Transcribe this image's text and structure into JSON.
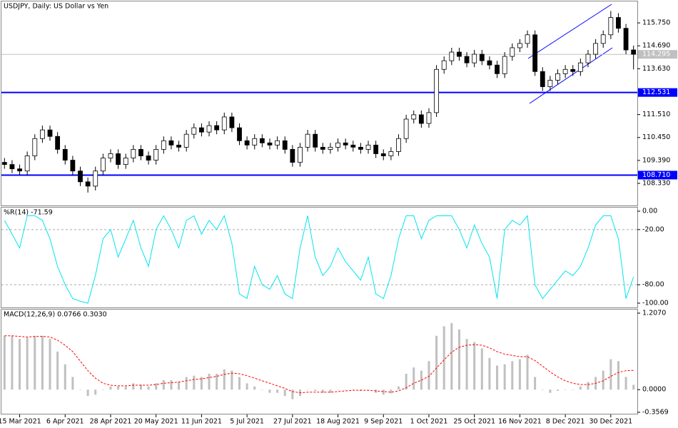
{
  "chart_data": [
    {
      "type": "candlestick",
      "title": "USDJPY, Daily:  US Dollar vs Yen",
      "categories": [
        null,
        null,
        "15 Mar 2021",
        null,
        null,
        null,
        null,
        null,
        "6 Apr 2021",
        null,
        null,
        null,
        null,
        null,
        "28 Apr 2021",
        null,
        null,
        null,
        null,
        null,
        "20 May 2021",
        null,
        null,
        null,
        null,
        null,
        "11 Jun 2021",
        null,
        null,
        null,
        null,
        null,
        "5 Jul 2021",
        null,
        null,
        null,
        null,
        null,
        "27 Jul 2021",
        null,
        null,
        null,
        null,
        null,
        "18 Aug 2021",
        null,
        null,
        null,
        null,
        null,
        "9 Sep 2021",
        null,
        null,
        null,
        null,
        null,
        "1 Oct 2021",
        null,
        null,
        null,
        null,
        null,
        "25 Oct 2021",
        null,
        null,
        null,
        null,
        null,
        "16 Nov 2021",
        null,
        null,
        null,
        null,
        null,
        "8 Dec 2021",
        null,
        null,
        null,
        null,
        null,
        "30 Dec 2021",
        null,
        null,
        null
      ],
      "open": [
        109.3,
        109.2,
        109.0,
        108.9,
        109.6,
        110.4,
        110.8,
        110.5,
        109.9,
        109.4,
        108.9,
        108.4,
        108.2,
        108.9,
        109.5,
        109.7,
        109.2,
        109.5,
        109.9,
        109.6,
        109.4,
        109.9,
        110.3,
        110.1,
        110.0,
        110.6,
        110.9,
        110.7,
        111.0,
        110.8,
        111.4,
        110.9,
        110.3,
        110.1,
        110.4,
        110.2,
        110.1,
        110.3,
        109.9,
        109.3,
        110.0,
        110.6,
        110.0,
        109.9,
        110.0,
        110.2,
        110.1,
        110.0,
        109.9,
        110.1,
        109.7,
        109.6,
        109.8,
        110.4,
        111.3,
        111.5,
        111.1,
        111.6,
        113.6,
        114.0,
        114.4,
        114.2,
        113.9,
        114.3,
        114.0,
        113.8,
        113.4,
        114.2,
        114.6,
        114.8,
        115.2,
        113.5,
        112.8,
        113.1,
        113.4,
        113.6,
        113.5,
        113.9,
        114.3,
        114.8,
        115.2,
        116.0,
        115.5,
        114.5
      ],
      "high": [
        109.5,
        109.4,
        109.2,
        109.8,
        110.6,
        111.0,
        111.0,
        110.7,
        110.1,
        109.6,
        109.1,
        108.6,
        109.1,
        109.7,
        109.9,
        109.9,
        109.7,
        110.1,
        110.1,
        109.8,
        110.1,
        110.5,
        110.5,
        110.3,
        110.8,
        111.1,
        111.1,
        111.2,
        111.2,
        111.6,
        111.6,
        111.1,
        110.5,
        110.6,
        110.6,
        110.4,
        110.5,
        110.5,
        110.1,
        110.2,
        110.8,
        110.8,
        110.2,
        110.2,
        110.4,
        110.4,
        110.3,
        110.2,
        110.3,
        110.3,
        109.9,
        110.0,
        110.6,
        111.5,
        111.7,
        111.7,
        111.8,
        113.8,
        114.2,
        114.6,
        114.6,
        114.4,
        114.5,
        114.5,
        114.2,
        114.0,
        114.4,
        114.8,
        115.0,
        115.4,
        115.4,
        113.7,
        113.3,
        113.6,
        113.8,
        113.8,
        114.1,
        114.5,
        115.0,
        115.4,
        116.3,
        116.2,
        115.7,
        114.7
      ],
      "low": [
        109.0,
        108.8,
        108.7,
        108.7,
        109.4,
        110.2,
        110.3,
        109.7,
        109.2,
        108.7,
        108.2,
        107.9,
        108.0,
        108.7,
        109.3,
        109.0,
        109.0,
        109.3,
        109.4,
        109.2,
        109.2,
        109.7,
        109.9,
        109.8,
        109.8,
        110.4,
        110.5,
        110.5,
        110.6,
        110.6,
        110.7,
        110.1,
        109.9,
        109.9,
        110.0,
        109.9,
        109.9,
        109.7,
        109.1,
        109.1,
        109.8,
        109.8,
        109.7,
        109.7,
        109.8,
        109.9,
        109.8,
        109.7,
        109.7,
        109.5,
        109.4,
        109.4,
        109.6,
        110.2,
        111.1,
        110.9,
        110.9,
        111.4,
        113.4,
        113.8,
        114.0,
        113.7,
        113.7,
        113.8,
        113.6,
        113.2,
        113.2,
        114.0,
        114.4,
        114.6,
        113.3,
        112.6,
        112.6,
        112.9,
        113.2,
        113.3,
        113.3,
        113.7,
        114.1,
        114.6,
        115.0,
        115.3,
        114.3,
        113.6
      ],
      "close": [
        109.2,
        109.0,
        108.9,
        109.6,
        110.4,
        110.8,
        110.5,
        109.9,
        109.4,
        108.9,
        108.4,
        108.2,
        108.9,
        109.5,
        109.7,
        109.2,
        109.5,
        109.9,
        109.6,
        109.4,
        109.9,
        110.3,
        110.1,
        110.0,
        110.6,
        110.9,
        110.7,
        111.0,
        110.8,
        111.4,
        110.9,
        110.3,
        110.1,
        110.4,
        110.2,
        110.1,
        110.3,
        109.9,
        109.3,
        110.0,
        110.6,
        110.0,
        109.9,
        110.0,
        110.2,
        110.1,
        110.0,
        109.9,
        110.1,
        109.7,
        109.6,
        109.8,
        110.4,
        111.3,
        111.5,
        111.1,
        111.6,
        113.6,
        114.0,
        114.4,
        114.2,
        113.9,
        114.3,
        114.0,
        113.8,
        113.4,
        114.2,
        114.6,
        114.8,
        115.2,
        113.5,
        112.8,
        113.1,
        113.4,
        113.6,
        113.5,
        113.9,
        114.3,
        114.8,
        115.2,
        116.0,
        115.5,
        114.5,
        114.3
      ],
      "up_color": "#ffffff",
      "down_color": "#000000",
      "ylim": [
        107.34,
        116.71
      ],
      "yticks": [
        {
          "value": 115.75,
          "label": "115.750"
        },
        {
          "value": 114.69,
          "label": "114.690"
        },
        {
          "value": 113.63,
          "label": "113.630"
        },
        {
          "value": 111.51,
          "label": "111.510"
        },
        {
          "value": 110.45,
          "label": "110.450"
        },
        {
          "value": 109.39,
          "label": "109.390"
        },
        {
          "value": 108.33,
          "label": "108.330"
        }
      ],
      "levels": [
        {
          "value": 112.531,
          "label": "112.531",
          "color": "#0000ff"
        },
        {
          "value": 108.71,
          "label": "108.710",
          "color": "#0000ff"
        }
      ],
      "current": {
        "value": 114.295,
        "label": "114.295",
        "color": "#c0c0c0"
      }
    },
    {
      "type": "line",
      "title": "%R(14) -71.59",
      "series": [
        {
          "color": "#00e5ee",
          "values": [
            -10,
            -25,
            -40,
            -5,
            -5,
            -10,
            -30,
            -60,
            -80,
            -95,
            -98,
            -100,
            -70,
            -30,
            -20,
            -50,
            -30,
            -10,
            -40,
            -60,
            -20,
            -5,
            -20,
            -40,
            -10,
            -5,
            -25,
            -10,
            -20,
            -5,
            -35,
            -90,
            -95,
            -60,
            -80,
            -85,
            -70,
            -90,
            -95,
            -40,
            -5,
            -50,
            -70,
            -60,
            -40,
            -55,
            -65,
            -75,
            -50,
            -90,
            -95,
            -70,
            -30,
            -5,
            -5,
            -30,
            -10,
            -5,
            -5,
            -5,
            -20,
            -40,
            -15,
            -35,
            -50,
            -95,
            -20,
            -10,
            -15,
            -5,
            -80,
            -95,
            -85,
            -75,
            -65,
            -70,
            -60,
            -40,
            -15,
            -5,
            -5,
            -30,
            -95,
            -71.59
          ]
        }
      ],
      "ylim": [
        -103.9,
        3.9
      ],
      "yticks": [
        {
          "value": 0,
          "label": "0.00"
        },
        {
          "value": -20,
          "label": "-20.00"
        },
        {
          "value": -80,
          "label": "-80.00"
        },
        {
          "value": -100,
          "label": "-100.00"
        }
      ],
      "levels": [
        -20,
        -80
      ]
    },
    {
      "type": "macd",
      "title": "MACD(12,26,9) 0.0766 0.3030",
      "histogram": {
        "color": "#c0c0c0",
        "values": [
          0.85,
          0.85,
          0.8,
          0.82,
          0.85,
          0.85,
          0.8,
          0.6,
          0.4,
          0.2,
          0.0,
          -0.1,
          -0.08,
          0.0,
          0.05,
          0.05,
          0.05,
          0.1,
          0.08,
          0.05,
          0.1,
          0.15,
          0.15,
          0.12,
          0.2,
          0.22,
          0.2,
          0.25,
          0.25,
          0.32,
          0.3,
          0.2,
          0.1,
          0.05,
          0.0,
          -0.05,
          -0.05,
          -0.1,
          -0.15,
          -0.1,
          0.0,
          -0.02,
          -0.05,
          -0.05,
          0.0,
          0.0,
          0.0,
          -0.02,
          0.0,
          -0.05,
          -0.08,
          -0.06,
          0.05,
          0.25,
          0.35,
          0.3,
          0.45,
          0.85,
          1.0,
          1.05,
          0.95,
          0.8,
          0.75,
          0.65,
          0.5,
          0.38,
          0.4,
          0.45,
          0.48,
          0.55,
          0.2,
          0.0,
          -0.05,
          -0.02,
          0.0,
          0.0,
          0.05,
          0.12,
          0.2,
          0.3,
          0.48,
          0.45,
          0.2,
          0.0766
        ]
      },
      "signal": {
        "color": "#ff0000",
        "values": [
          0.85,
          0.85,
          0.84,
          0.83,
          0.84,
          0.84,
          0.83,
          0.78,
          0.7,
          0.6,
          0.45,
          0.3,
          0.18,
          0.1,
          0.07,
          0.06,
          0.06,
          0.07,
          0.07,
          0.07,
          0.08,
          0.1,
          0.11,
          0.12,
          0.14,
          0.16,
          0.17,
          0.19,
          0.21,
          0.24,
          0.26,
          0.25,
          0.22,
          0.18,
          0.14,
          0.1,
          0.06,
          0.02,
          -0.03,
          -0.05,
          -0.04,
          -0.04,
          -0.04,
          -0.04,
          -0.03,
          -0.02,
          -0.01,
          -0.01,
          -0.01,
          -0.02,
          -0.03,
          -0.04,
          -0.02,
          0.03,
          0.1,
          0.15,
          0.21,
          0.34,
          0.47,
          0.59,
          0.67,
          0.7,
          0.71,
          0.7,
          0.66,
          0.6,
          0.56,
          0.54,
          0.52,
          0.52,
          0.46,
          0.37,
          0.28,
          0.2,
          0.14,
          0.1,
          0.08,
          0.08,
          0.1,
          0.14,
          0.21,
          0.27,
          0.3,
          0.303
        ]
      },
      "ylim": [
        -0.38,
        1.263
      ],
      "yticks": [
        {
          "value": 1.207,
          "label": "1.2070"
        },
        {
          "value": 0,
          "label": "0.0000"
        },
        {
          "value": -0.3569,
          "label": "-0.3569"
        }
      ]
    }
  ]
}
